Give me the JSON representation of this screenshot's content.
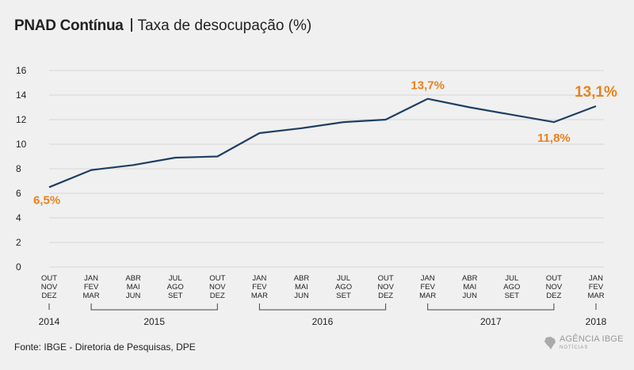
{
  "title": {
    "main": "PNAD Contínua",
    "subtitle": "Taxa de desocupação (%)"
  },
  "chart_data": {
    "type": "line",
    "ylim": [
      0,
      16
    ],
    "y_ticks": [
      "0",
      "2",
      "4",
      "6",
      "8",
      "10",
      "12",
      "14",
      "16"
    ],
    "grid": true,
    "categories": [
      [
        "OUT",
        "NOV",
        "DEZ"
      ],
      [
        "JAN",
        "FEV",
        "MAR"
      ],
      [
        "ABR",
        "MAI",
        "JUN"
      ],
      [
        "JUL",
        "AGO",
        "SET"
      ],
      [
        "OUT",
        "NOV",
        "DEZ"
      ],
      [
        "JAN",
        "FEV",
        "MAR"
      ],
      [
        "ABR",
        "MAI",
        "JUN"
      ],
      [
        "JUL",
        "AGO",
        "SET"
      ],
      [
        "OUT",
        "NOV",
        "DEZ"
      ],
      [
        "JAN",
        "FEV",
        "MAR"
      ],
      [
        "ABR",
        "MAI",
        "JUN"
      ],
      [
        "JUL",
        "AGO",
        "SET"
      ],
      [
        "OUT",
        "NOV",
        "DEZ"
      ],
      [
        "JAN",
        "FEV",
        "MAR"
      ]
    ],
    "series": [
      {
        "values": [
          6.5,
          7.9,
          8.3,
          8.9,
          9.0,
          10.9,
          11.3,
          11.8,
          12.0,
          13.7,
          13.0,
          12.4,
          11.8,
          13.1
        ],
        "color": "#1f3f63"
      }
    ],
    "annotations": [
      {
        "index": 0,
        "text": "6,5%",
        "color": "#e8821e"
      },
      {
        "index": 9,
        "text": "13,7%",
        "color": "#e8821e"
      },
      {
        "index": 12,
        "text": "11,8%",
        "color": "#e8821e"
      },
      {
        "index": 13,
        "text": "13,1%",
        "color": "#e8821e"
      }
    ],
    "year_groups": [
      {
        "label": "2014",
        "start": 0,
        "end": 0
      },
      {
        "label": "2015",
        "start": 1,
        "end": 4
      },
      {
        "label": "2016",
        "start": 5,
        "end": 8
      },
      {
        "label": "2017",
        "start": 9,
        "end": 12
      },
      {
        "label": "2018",
        "start": 13,
        "end": 13
      }
    ]
  },
  "footer": {
    "source": "Fonte: IBGE - Diretoria de Pesquisas, DPE",
    "logo_name": "AGÊNCIA IBGE",
    "logo_sub": "NOTÍCIAS"
  }
}
